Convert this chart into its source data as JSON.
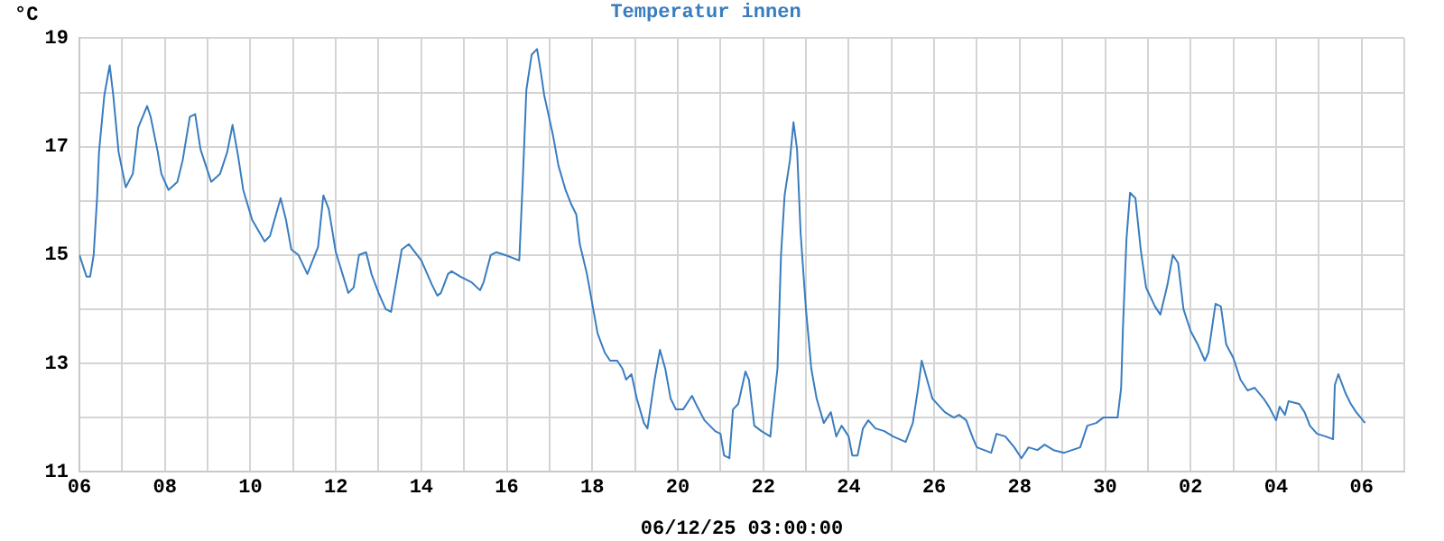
{
  "chart_data": {
    "type": "line",
    "title": "Temperatur innen",
    "xlabel": "06/12/25 03:00:00",
    "ylabel": "°C",
    "x": [
      "--11-06T00:00",
      "--11-06T04:00",
      "--11-06T06:00",
      "--11-06T08:00",
      "--11-06T10:00",
      "--11-06T11:00",
      "--11-06T14:00",
      "--11-06T17:00",
      "--11-06T19:00",
      "--11-06T22:00",
      "--11-07T02:00",
      "--11-07T06:00",
      "--11-07T09:00",
      "--11-07T14:00",
      "--11-07T16:00",
      "--11-07T20:00",
      "--11-07T22:00",
      "--11-08T02:00",
      "--11-08T07:00",
      "--11-08T10:00",
      "--11-08T14:00",
      "--11-08T17:00",
      "--11-08T20:00",
      "--11-09T02:00",
      "--11-09T07:00",
      "--11-09T11:00",
      "--11-09T14:00",
      "--11-09T17:00",
      "--11-09T20:00",
      "--11-10T01:00",
      "--11-10T08:00",
      "--11-10T11:00",
      "--11-10T17:00",
      "--11-10T20:00",
      "--11-10T23:00",
      "--11-11T03:00",
      "--11-11T08:00",
      "--11-11T14:00",
      "--11-11T17:00",
      "--11-11T20:00",
      "--11-12T00:00",
      "--11-12T07:00",
      "--11-12T10:00",
      "--11-12T13:00",
      "--11-12T17:00",
      "--11-12T20:00",
      "--11-13T00:00",
      "--11-13T04:00",
      "--11-13T07:00",
      "--11-13T13:00",
      "--11-13T17:00",
      "--11-14T00:00",
      "--11-14T06:00",
      "--11-14T09:00",
      "--11-14T11:00",
      "--11-14T15:00",
      "--11-14T17:00",
      "--11-14T22:00",
      "--11-15T04:00",
      "--11-15T09:00",
      "--11-15T11:00",
      "--11-15T15:00",
      "--11-15T18:00",
      "--11-15T23:00",
      "--11-16T07:00",
      "--11-16T09:00",
      "--11-16T11:00",
      "--11-16T14:00",
      "--11-16T17:00",
      "--11-16T19:00",
      "--11-16T21:00",
      "--11-17T00:00",
      "--11-17T02:00",
      "--11-17T05:00",
      "--11-17T09:00",
      "--11-17T12:00",
      "--11-17T15:00",
      "--11-17T17:00",
      "--11-17T21:00",
      "--11-18T00:00",
      "--11-18T03:00",
      "--11-18T07:00",
      "--11-18T10:00",
      "--11-18T14:00",
      "--11-18T17:00",
      "--11-18T19:00",
      "--11-18T22:00",
      "--11-19T01:00",
      "--11-19T05:00",
      "--11-19T07:00",
      "--11-19T11:00",
      "--11-19T14:00",
      "--11-19T17:00",
      "--11-19T20:00",
      "--11-19T23:00",
      "--11-20T03:00",
      "--11-20T08:00",
      "--11-20T11:00",
      "--11-20T15:00",
      "--11-20T18:00",
      "--11-20T21:00",
      "--11-21T00:00",
      "--11-21T02:00",
      "--11-21T05:00",
      "--11-21T07:00",
      "--11-21T10:00",
      "--11-21T14:00",
      "--11-21T16:00",
      "--11-21T19:00",
      "--11-21T23:00",
      "--11-22T04:00",
      "--11-22T05:00",
      "--11-22T08:00",
      "--11-22T10:00",
      "--11-22T12:00",
      "--11-22T15:00",
      "--11-22T17:00",
      "--11-22T19:00",
      "--11-22T21:00",
      "--11-23T00:00",
      "--11-23T03:00",
      "--11-23T06:00",
      "--11-23T10:00",
      "--11-23T14:00",
      "--11-23T17:00",
      "--11-23T20:00",
      "--11-24T00:00",
      "--11-24T02:00",
      "--11-24T05:00",
      "--11-24T08:00",
      "--11-24T11:00",
      "--11-24T15:00",
      "--11-24T20:00",
      "--11-25T01:00",
      "--11-25T08:00",
      "--11-25T12:00",
      "--11-25T15:00",
      "--11-25T17:00",
      "--11-25T23:00",
      "--11-26T06:00",
      "--11-26T11:00",
      "--11-26T14:00",
      "--11-26T18:00",
      "--11-26T22:00",
      "--11-27T00:00",
      "--11-27T04:00",
      "--11-27T08:00",
      "--11-27T11:00",
      "--11-27T16:00",
      "--11-27T21:00",
      "--11-28T01:00",
      "--11-28T05:00",
      "--11-28T10:00",
      "--11-28T14:00",
      "--11-28T19:00",
      "--11-29T01:00",
      "--11-29T10:00",
      "--11-29T14:00",
      "--11-29T19:00",
      "--11-29T23:00",
      "--11-30T07:00",
      "--11-30T09:00",
      "--11-30T10:00",
      "--11-30T12:00",
      "--11-30T14:00",
      "--11-30T17:00",
      "--11-30T20:00",
      "--11-30T23:00",
      "--12-01T04:00",
      "--12-01T07:00",
      "--12-01T11:00",
      "--12-01T14:00",
      "--12-01T17:00",
      "--12-01T20:00",
      "--12-02T00:00",
      "--12-02T04:00",
      "--12-02T08:00",
      "--12-02T10:00",
      "--12-02T14:00",
      "--12-02T17:00",
      "--12-02T20:00",
      "--12-03T00:00",
      "--12-03T04:00",
      "--12-03T08:00",
      "--12-03T12:00",
      "--12-03T17:00",
      "--12-03T20:00",
      "--12-04T00:00",
      "--12-04T02:00",
      "--12-04T05:00",
      "--12-04T07:00",
      "--12-04T13:00",
      "--12-04T16:00",
      "--12-04T19:00",
      "--12-04T23:00",
      "--12-05T04:00",
      "--12-05T08:00",
      "--12-05T09:00",
      "--12-05T11:00",
      "--12-05T15:00",
      "--12-05T18:00",
      "--12-05T21:00",
      "--12-06T02:00"
    ],
    "series": [
      {
        "color": "#3a7dbf",
        "values": [
          15.0,
          14.6,
          14.6,
          15.0,
          16.1,
          16.9,
          17.95,
          18.5,
          17.95,
          16.9,
          16.25,
          16.5,
          17.35,
          17.75,
          17.55,
          16.9,
          16.5,
          16.2,
          16.35,
          16.75,
          17.55,
          17.6,
          16.95,
          16.35,
          16.5,
          16.9,
          17.4,
          16.85,
          16.2,
          15.65,
          15.25,
          15.35,
          16.05,
          15.65,
          15.1,
          15.0,
          14.65,
          15.15,
          16.1,
          15.85,
          15.05,
          14.3,
          14.4,
          15.0,
          15.05,
          14.65,
          14.3,
          14.0,
          13.95,
          15.1,
          15.2,
          14.9,
          14.45,
          14.25,
          14.3,
          14.65,
          14.7,
          14.6,
          14.5,
          14.35,
          14.5,
          15.0,
          15.05,
          15.0,
          14.9,
          16.4,
          18.05,
          18.7,
          18.8,
          18.4,
          17.95,
          17.5,
          17.2,
          16.65,
          16.2,
          15.95,
          15.75,
          15.2,
          14.65,
          14.1,
          13.55,
          13.2,
          13.05,
          13.05,
          12.9,
          12.7,
          12.8,
          12.35,
          11.9,
          11.8,
          12.7,
          13.25,
          12.9,
          12.35,
          12.15,
          12.15,
          12.4,
          12.2,
          11.95,
          11.85,
          11.75,
          11.7,
          11.3,
          11.25,
          12.15,
          12.25,
          12.85,
          12.7,
          11.85,
          11.75,
          11.65,
          12.0,
          12.9,
          15.0,
          16.1,
          16.75,
          17.45,
          16.95,
          15.4,
          14.0,
          12.9,
          12.35,
          11.9,
          12.1,
          11.65,
          11.85,
          11.65,
          11.3,
          11.3,
          11.8,
          11.95,
          11.8,
          11.75,
          11.65,
          11.55,
          11.9,
          12.55,
          13.05,
          12.35,
          12.1,
          12.0,
          12.05,
          11.95,
          11.6,
          11.45,
          11.4,
          11.35,
          11.7,
          11.65,
          11.45,
          11.25,
          11.45,
          11.4,
          11.5,
          11.4,
          11.35,
          11.45,
          11.85,
          11.9,
          12.0,
          12.0,
          12.55,
          13.65,
          15.3,
          16.15,
          16.05,
          15.1,
          14.4,
          14.05,
          13.9,
          14.45,
          15.0,
          14.85,
          14.0,
          13.6,
          13.35,
          13.05,
          13.2,
          14.1,
          14.05,
          13.35,
          13.1,
          12.7,
          12.5,
          12.55,
          12.35,
          12.2,
          11.95,
          12.2,
          12.05,
          12.3,
          12.25,
          12.1,
          11.85,
          11.7,
          11.65,
          11.6,
          12.6,
          12.8,
          12.45,
          12.25,
          12.1,
          11.9
        ]
      }
    ],
    "xlim": [
      "--11-06T00:00",
      "--12-07T00:00"
    ],
    "xticks": [
      {
        "value": "--11-06T00:00",
        "label": "06"
      },
      {
        "value": "--11-07T00:00",
        "label": null
      },
      {
        "value": "--11-08T00:00",
        "label": "08"
      },
      {
        "value": "--11-09T00:00",
        "label": null
      },
      {
        "value": "--11-10T00:00",
        "label": "10"
      },
      {
        "value": "--11-11T00:00",
        "label": null
      },
      {
        "value": "--11-12T00:00",
        "label": "12"
      },
      {
        "value": "--11-13T00:00",
        "label": null
      },
      {
        "value": "--11-14T00:00",
        "label": "14"
      },
      {
        "value": "--11-15T00:00",
        "label": null
      },
      {
        "value": "--11-16T00:00",
        "label": "16"
      },
      {
        "value": "--11-17T00:00",
        "label": null
      },
      {
        "value": "--11-18T00:00",
        "label": "18"
      },
      {
        "value": "--11-19T00:00",
        "label": null
      },
      {
        "value": "--11-20T00:00",
        "label": "20"
      },
      {
        "value": "--11-21T00:00",
        "label": null
      },
      {
        "value": "--11-22T00:00",
        "label": "22"
      },
      {
        "value": "--11-23T00:00",
        "label": null
      },
      {
        "value": "--11-24T00:00",
        "label": "24"
      },
      {
        "value": "--11-25T00:00",
        "label": null
      },
      {
        "value": "--11-26T00:00",
        "label": "26"
      },
      {
        "value": "--11-27T00:00",
        "label": null
      },
      {
        "value": "--11-28T00:00",
        "label": "28"
      },
      {
        "value": "--11-29T00:00",
        "label": null
      },
      {
        "value": "--11-30T00:00",
        "label": "30"
      },
      {
        "value": "--12-01T00:00",
        "label": null
      },
      {
        "value": "--12-02T00:00",
        "label": "02"
      },
      {
        "value": "--12-03T00:00",
        "label": null
      },
      {
        "value": "--12-04T00:00",
        "label": "04"
      },
      {
        "value": "--12-05T00:00",
        "label": null
      },
      {
        "value": "--12-06T00:00",
        "label": "06"
      },
      {
        "value": "--12-07T00:00",
        "label": null
      }
    ],
    "ylim": [
      11,
      19
    ],
    "yticks": [
      11,
      {
        "value": 12,
        "label": null
      },
      13,
      {
        "value": 14,
        "label": null
      },
      15,
      {
        "value": 16,
        "label": null
      },
      17,
      {
        "value": 18,
        "label": null
      },
      19
    ],
    "grid": true,
    "legend": false,
    "marker": "none",
    "line_style": "solid"
  }
}
